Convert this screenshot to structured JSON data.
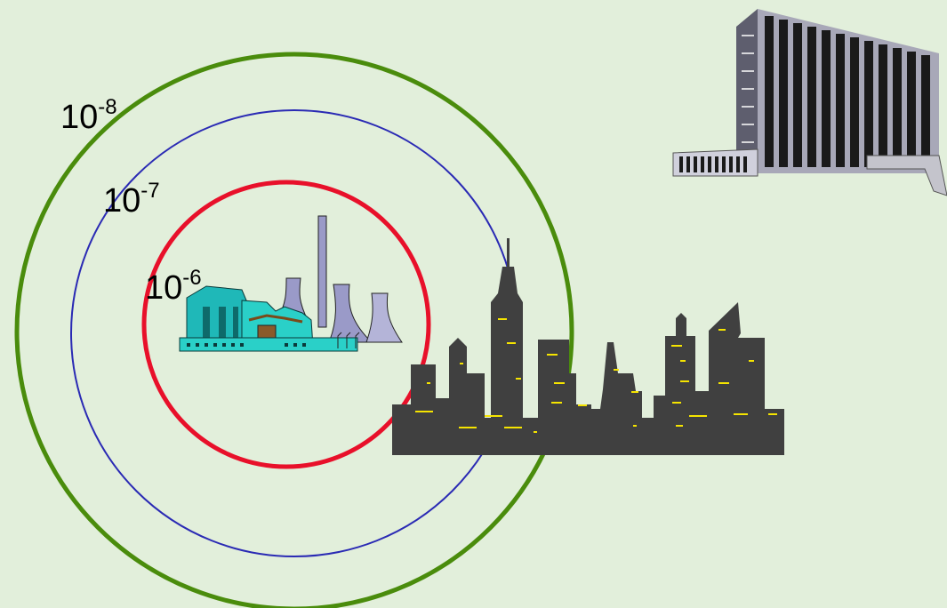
{
  "rings": {
    "inner": {
      "base": "10",
      "exponent": "-6",
      "color": "#e8102a"
    },
    "middle": {
      "base": "10",
      "exponent": "-7",
      "color": "#2a2ab4"
    },
    "outer": {
      "base": "10",
      "exponent": "-8",
      "color": "#4a8c0c"
    }
  },
  "colors": {
    "background": "#e2efdb",
    "city": "#404040",
    "window_light": "#f5e400",
    "plant_teal": "#1fb8b8",
    "cooling_tower": "#9a9ac8",
    "office_building": "#8c8c9c"
  },
  "icons": {
    "center": "power-plant-icon",
    "near_city": "city-skyline-icon",
    "far": "office-building-icon"
  }
}
